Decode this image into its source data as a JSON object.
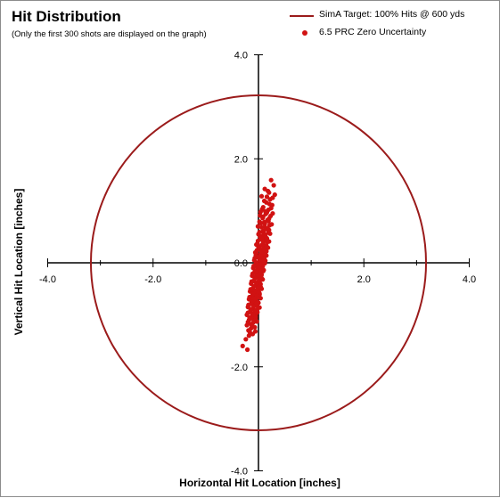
{
  "chart_data": {
    "type": "scatter",
    "title": "Hit Distribution",
    "subtitle": "(Only the first 300 shots are displayed on the graph)",
    "xlabel": "Horizontal Hit Location [inches]",
    "ylabel": "Vertical Hit Location [inches]",
    "xlim": [
      -4.0,
      4.0
    ],
    "ylim": [
      -4.0,
      4.0
    ],
    "x_ticks": [
      "-4.0",
      "-2.0",
      "0.0",
      "2.0",
      "4.0"
    ],
    "y_ticks": [
      "4.0",
      "2.0",
      "0.0",
      "-2.0",
      "-4.0"
    ],
    "grid": false,
    "legend_position": "top-right",
    "colors": {
      "target": "#9b1b1b",
      "hits": "#d11212"
    },
    "series": [
      {
        "name": "SimA Target:  100% Hits @ 600 yds",
        "kind": "circle",
        "center": [
          0,
          0
        ],
        "radius": 3.18
      },
      {
        "name": "6.5 PRC Zero Uncertainty",
        "kind": "points",
        "points": [
          [
            0.24,
            1.59
          ],
          [
            0.29,
            1.49
          ],
          [
            0.12,
            1.42
          ],
          [
            0.18,
            1.38
          ],
          [
            0.31,
            1.31
          ],
          [
            0.06,
            1.28
          ],
          [
            0.22,
            1.22
          ],
          [
            0.15,
            1.16
          ],
          [
            0.26,
            1.11
          ],
          [
            0.09,
            1.07
          ],
          [
            0.19,
            1.02
          ],
          [
            0.04,
            0.98
          ],
          [
            0.14,
            0.94
          ],
          [
            0.23,
            0.9
          ],
          [
            0.08,
            0.86
          ],
          [
            0.17,
            0.82
          ],
          [
            0.02,
            0.79
          ],
          [
            0.12,
            0.75
          ],
          [
            0.21,
            0.72
          ],
          [
            0.06,
            0.68
          ],
          [
            0.15,
            0.65
          ],
          [
            0.1,
            0.61
          ],
          [
            0.19,
            0.58
          ],
          [
            0.0,
            0.55
          ],
          [
            0.08,
            0.52
          ],
          [
            0.14,
            0.49
          ],
          [
            0.04,
            0.46
          ],
          [
            0.11,
            0.43
          ],
          [
            0.17,
            0.4
          ],
          [
            -0.02,
            0.37
          ],
          [
            0.06,
            0.34
          ],
          [
            0.12,
            0.31
          ],
          [
            0.02,
            0.28
          ],
          [
            0.09,
            0.25
          ],
          [
            0.15,
            0.22
          ],
          [
            -0.04,
            0.19
          ],
          [
            0.04,
            0.16
          ],
          [
            0.1,
            0.13
          ],
          [
            0.0,
            0.1
          ],
          [
            0.07,
            0.07
          ],
          [
            0.13,
            0.04
          ],
          [
            -0.05,
            0.01
          ],
          [
            0.03,
            -0.02
          ],
          [
            0.08,
            -0.05
          ],
          [
            -0.02,
            -0.08
          ],
          [
            0.05,
            -0.11
          ],
          [
            0.1,
            -0.14
          ],
          [
            -0.07,
            -0.17
          ],
          [
            0.01,
            -0.2
          ],
          [
            0.06,
            -0.23
          ],
          [
            -0.04,
            -0.26
          ],
          [
            0.03,
            -0.29
          ],
          [
            0.08,
            -0.32
          ],
          [
            -0.09,
            -0.35
          ],
          [
            -0.01,
            -0.38
          ],
          [
            0.04,
            -0.41
          ],
          [
            -0.06,
            -0.44
          ],
          [
            0.01,
            -0.47
          ],
          [
            0.06,
            -0.5
          ],
          [
            -0.11,
            -0.53
          ],
          [
            -0.03,
            -0.56
          ],
          [
            0.02,
            -0.59
          ],
          [
            -0.08,
            -0.62
          ],
          [
            -0.01,
            -0.65
          ],
          [
            0.04,
            -0.68
          ],
          [
            -0.13,
            -0.71
          ],
          [
            -0.05,
            -0.74
          ],
          [
            0.0,
            -0.77
          ],
          [
            -0.1,
            -0.8
          ],
          [
            -0.03,
            -0.83
          ],
          [
            0.02,
            -0.86
          ],
          [
            -0.15,
            -0.89
          ],
          [
            -0.07,
            -0.92
          ],
          [
            -0.02,
            -0.95
          ],
          [
            -0.12,
            -0.98
          ],
          [
            -0.05,
            -1.01
          ],
          [
            -0.17,
            -1.05
          ],
          [
            -0.09,
            -1.09
          ],
          [
            -0.03,
            -1.13
          ],
          [
            -0.14,
            -1.18
          ],
          [
            -0.07,
            -1.24
          ],
          [
            -0.19,
            -1.3
          ],
          [
            -0.11,
            -1.37
          ],
          [
            -0.24,
            -1.47
          ],
          [
            -0.3,
            -1.6
          ],
          [
            -0.21,
            -1.67
          ],
          [
            0.2,
            1.35
          ],
          [
            0.27,
            1.25
          ],
          [
            0.11,
            1.19
          ],
          [
            0.24,
            1.05
          ],
          [
            0.13,
            0.99
          ],
          [
            0.27,
            0.95
          ],
          [
            0.03,
            0.91
          ],
          [
            0.2,
            0.85
          ],
          [
            0.11,
            0.78
          ],
          [
            0.25,
            0.74
          ],
          [
            -0.01,
            0.7
          ],
          [
            0.17,
            0.66
          ],
          [
            0.08,
            0.6
          ],
          [
            0.22,
            0.56
          ],
          [
            0.03,
            0.51
          ],
          [
            0.16,
            0.47
          ],
          [
            0.07,
            0.44
          ],
          [
            0.2,
            0.41
          ],
          [
            -0.04,
            0.35
          ],
          [
            0.1,
            0.32
          ],
          [
            0.18,
            0.29
          ],
          [
            0.01,
            0.26
          ],
          [
            0.13,
            0.23
          ],
          [
            -0.06,
            0.2
          ],
          [
            0.08,
            0.17
          ],
          [
            0.15,
            0.14
          ],
          [
            -0.01,
            0.11
          ],
          [
            0.11,
            0.08
          ],
          [
            -0.08,
            0.05
          ],
          [
            0.05,
            0.02
          ],
          [
            0.12,
            -0.01
          ],
          [
            -0.03,
            -0.04
          ],
          [
            0.08,
            -0.07
          ],
          [
            -0.1,
            -0.1
          ],
          [
            0.02,
            -0.13
          ],
          [
            0.09,
            -0.16
          ],
          [
            -0.06,
            -0.19
          ],
          [
            0.05,
            -0.22
          ],
          [
            -0.12,
            -0.25
          ],
          [
            0.0,
            -0.28
          ],
          [
            0.07,
            -0.31
          ],
          [
            -0.08,
            -0.34
          ],
          [
            0.02,
            -0.37
          ],
          [
            -0.14,
            -0.4
          ],
          [
            -0.03,
            -0.43
          ],
          [
            0.04,
            -0.46
          ],
          [
            -0.1,
            -0.49
          ],
          [
            0.0,
            -0.52
          ],
          [
            -0.16,
            -0.55
          ],
          [
            -0.05,
            -0.58
          ],
          [
            0.02,
            -0.61
          ],
          [
            -0.12,
            -0.64
          ],
          [
            -0.02,
            -0.67
          ],
          [
            -0.18,
            -0.7
          ],
          [
            -0.08,
            -0.73
          ],
          [
            -0.01,
            -0.76
          ],
          [
            -0.14,
            -0.79
          ],
          [
            -0.05,
            -0.82
          ],
          [
            -0.2,
            -0.85
          ],
          [
            -0.1,
            -0.88
          ],
          [
            -0.03,
            -0.91
          ],
          [
            -0.16,
            -0.94
          ],
          [
            -0.08,
            -0.97
          ],
          [
            -0.22,
            -1.0
          ],
          [
            -0.12,
            -1.03
          ],
          [
            -0.05,
            -1.06
          ],
          [
            -0.18,
            -1.1
          ],
          [
            -0.1,
            -1.15
          ],
          [
            -0.22,
            -1.2
          ],
          [
            -0.14,
            -1.26
          ],
          [
            -0.06,
            -1.32
          ],
          [
            -0.18,
            -1.4
          ],
          [
            0.16,
            1.27
          ],
          [
            0.21,
            1.13
          ],
          [
            0.07,
            1.03
          ],
          [
            0.16,
            0.97
          ],
          [
            0.09,
            0.89
          ],
          [
            0.19,
            0.8
          ],
          [
            0.05,
            0.76
          ],
          [
            0.12,
            0.69
          ],
          [
            0.2,
            0.63
          ],
          [
            0.02,
            0.59
          ],
          [
            0.13,
            0.54
          ],
          [
            0.06,
            0.48
          ],
          [
            0.16,
            0.45
          ],
          [
            -0.01,
            0.42
          ],
          [
            0.09,
            0.38
          ],
          [
            0.15,
            0.33
          ],
          [
            0.0,
            0.3
          ],
          [
            0.1,
            0.27
          ],
          [
            -0.03,
            0.24
          ],
          [
            0.06,
            0.21
          ],
          [
            0.12,
            0.18
          ],
          [
            -0.05,
            0.15
          ],
          [
            0.05,
            0.12
          ],
          [
            -0.07,
            0.09
          ],
          [
            0.02,
            0.06
          ],
          [
            0.09,
            0.03
          ],
          [
            -0.04,
            0.0
          ],
          [
            0.06,
            -0.03
          ],
          [
            -0.09,
            -0.06
          ],
          [
            0.01,
            -0.09
          ],
          [
            0.07,
            -0.12
          ],
          [
            -0.05,
            -0.15
          ],
          [
            0.03,
            -0.18
          ],
          [
            -0.11,
            -0.21
          ],
          [
            -0.01,
            -0.24
          ],
          [
            0.05,
            -0.27
          ],
          [
            -0.07,
            -0.3
          ],
          [
            0.01,
            -0.33
          ],
          [
            -0.13,
            -0.36
          ],
          [
            -0.04,
            -0.39
          ],
          [
            0.03,
            -0.42
          ],
          [
            -0.09,
            -0.45
          ],
          [
            -0.01,
            -0.48
          ],
          [
            -0.15,
            -0.51
          ],
          [
            -0.06,
            -0.54
          ],
          [
            0.01,
            -0.57
          ],
          [
            -0.11,
            -0.6
          ],
          [
            -0.03,
            -0.63
          ],
          [
            -0.17,
            -0.66
          ],
          [
            -0.07,
            -0.69
          ],
          [
            -0.13,
            -0.75
          ],
          [
            -0.04,
            -0.78
          ],
          [
            -0.19,
            -0.81
          ],
          [
            -0.09,
            -0.84
          ],
          [
            -0.14,
            -0.9
          ],
          [
            -0.06,
            -0.93
          ],
          [
            -0.2,
            -0.96
          ],
          [
            -0.1,
            -0.99
          ],
          [
            -0.15,
            -1.07
          ],
          [
            -0.07,
            -1.11
          ],
          [
            -0.2,
            -1.14
          ],
          [
            -0.12,
            -1.22
          ],
          [
            -0.16,
            -1.34
          ]
        ]
      }
    ]
  }
}
